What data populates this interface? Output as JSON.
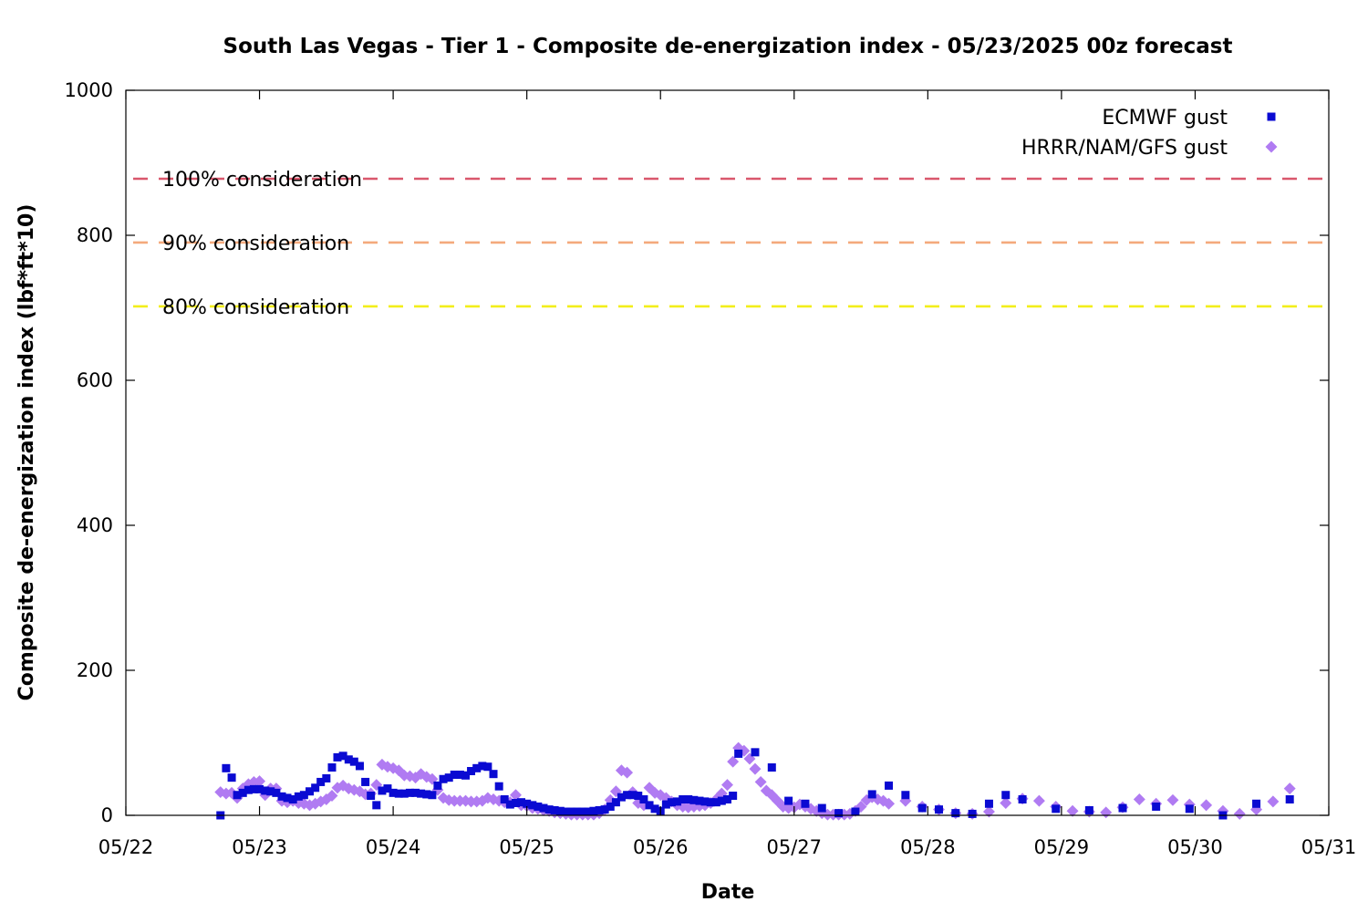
{
  "chart_data": {
    "type": "scatter",
    "title": "South Las Vegas - Tier 1 - Composite de-energization index - 05/23/2025 00z forecast",
    "xlabel": "Date",
    "ylabel": "Composite de-energization index (lbf*ft*10)",
    "x_unit": "days",
    "xlim": [
      0,
      9
    ],
    "ylim": [
      0,
      1000
    ],
    "x_ticks": [
      {
        "value": 0,
        "label": "05/22"
      },
      {
        "value": 1,
        "label": "05/23"
      },
      {
        "value": 2,
        "label": "05/24"
      },
      {
        "value": 3,
        "label": "05/25"
      },
      {
        "value": 4,
        "label": "05/26"
      },
      {
        "value": 5,
        "label": "05/27"
      },
      {
        "value": 6,
        "label": "05/28"
      },
      {
        "value": 7,
        "label": "05/29"
      },
      {
        "value": 8,
        "label": "05/30"
      },
      {
        "value": 9,
        "label": "05/31"
      }
    ],
    "y_ticks": [
      {
        "value": 0,
        "label": "0"
      },
      {
        "value": 200,
        "label": "200"
      },
      {
        "value": 400,
        "label": "400"
      },
      {
        "value": 600,
        "label": "600"
      },
      {
        "value": 800,
        "label": "800"
      },
      {
        "value": 1000,
        "label": "1000"
      }
    ],
    "legend_position": "top-right",
    "grid": false,
    "thresholds": [
      {
        "label": "100% consideration",
        "value": 878,
        "color": "#d9576c"
      },
      {
        "label": "90% consideration",
        "value": 790,
        "color": "#f4a97c"
      },
      {
        "label": "80% consideration",
        "value": 702,
        "color": "#f2ee1a"
      }
    ],
    "series": [
      {
        "name": "ECMWF gust",
        "marker": "square",
        "color": "#0a0ad2",
        "points": [
          [
            0.708,
            0
          ],
          [
            0.75,
            65
          ],
          [
            0.792,
            52
          ],
          [
            0.833,
            28
          ],
          [
            0.875,
            31
          ],
          [
            0.917,
            35
          ],
          [
            0.958,
            36
          ],
          [
            1.0,
            36
          ],
          [
            1.042,
            34
          ],
          [
            1.083,
            33
          ],
          [
            1.125,
            31
          ],
          [
            1.167,
            26
          ],
          [
            1.208,
            24
          ],
          [
            1.25,
            22
          ],
          [
            1.292,
            26
          ],
          [
            1.333,
            28
          ],
          [
            1.375,
            33
          ],
          [
            1.417,
            38
          ],
          [
            1.458,
            46
          ],
          [
            1.5,
            51
          ],
          [
            1.542,
            66
          ],
          [
            1.583,
            80
          ],
          [
            1.625,
            82
          ],
          [
            1.667,
            77
          ],
          [
            1.708,
            74
          ],
          [
            1.75,
            68
          ],
          [
            1.792,
            46
          ],
          [
            1.833,
            27
          ],
          [
            1.875,
            14
          ],
          [
            1.917,
            34
          ],
          [
            1.958,
            37
          ],
          [
            2.0,
            31
          ],
          [
            2.042,
            30
          ],
          [
            2.083,
            30
          ],
          [
            2.125,
            31
          ],
          [
            2.167,
            31
          ],
          [
            2.208,
            30
          ],
          [
            2.25,
            29
          ],
          [
            2.292,
            28
          ],
          [
            2.333,
            41
          ],
          [
            2.375,
            50
          ],
          [
            2.417,
            52
          ],
          [
            2.458,
            56
          ],
          [
            2.5,
            56
          ],
          [
            2.542,
            55
          ],
          [
            2.583,
            61
          ],
          [
            2.625,
            65
          ],
          [
            2.667,
            68
          ],
          [
            2.708,
            67
          ],
          [
            2.75,
            57
          ],
          [
            2.792,
            40
          ],
          [
            2.833,
            22
          ],
          [
            2.875,
            15
          ],
          [
            2.917,
            17
          ],
          [
            2.958,
            18
          ],
          [
            3.0,
            16
          ],
          [
            3.042,
            14
          ],
          [
            3.083,
            12
          ],
          [
            3.125,
            10
          ],
          [
            3.167,
            8
          ],
          [
            3.208,
            7
          ],
          [
            3.25,
            6
          ],
          [
            3.292,
            5
          ],
          [
            3.333,
            5
          ],
          [
            3.375,
            5
          ],
          [
            3.417,
            5
          ],
          [
            3.458,
            5
          ],
          [
            3.5,
            6
          ],
          [
            3.542,
            7
          ],
          [
            3.583,
            8
          ],
          [
            3.625,
            12
          ],
          [
            3.667,
            18
          ],
          [
            3.708,
            25
          ],
          [
            3.75,
            28
          ],
          [
            3.792,
            28
          ],
          [
            3.833,
            27
          ],
          [
            3.875,
            22
          ],
          [
            3.917,
            14
          ],
          [
            3.958,
            9
          ],
          [
            4.0,
            6
          ],
          [
            4.042,
            15
          ],
          [
            4.083,
            18
          ],
          [
            4.125,
            19
          ],
          [
            4.167,
            22
          ],
          [
            4.208,
            22
          ],
          [
            4.25,
            21
          ],
          [
            4.292,
            20
          ],
          [
            4.333,
            19
          ],
          [
            4.375,
            18
          ],
          [
            4.417,
            18
          ],
          [
            4.458,
            20
          ],
          [
            4.5,
            22
          ],
          [
            4.542,
            27
          ],
          [
            4.583,
            85
          ],
          [
            4.708,
            87
          ],
          [
            4.833,
            66
          ],
          [
            4.958,
            20
          ],
          [
            5.083,
            16
          ],
          [
            5.208,
            10
          ],
          [
            5.333,
            3
          ],
          [
            5.458,
            5
          ],
          [
            5.583,
            29
          ],
          [
            5.708,
            41
          ],
          [
            5.833,
            28
          ],
          [
            5.958,
            10
          ],
          [
            6.083,
            8
          ],
          [
            6.208,
            3
          ],
          [
            6.333,
            2
          ],
          [
            6.458,
            16
          ],
          [
            6.583,
            28
          ],
          [
            6.708,
            22
          ],
          [
            6.958,
            9
          ],
          [
            7.208,
            7
          ],
          [
            7.458,
            10
          ],
          [
            7.708,
            12
          ],
          [
            7.958,
            9
          ],
          [
            8.208,
            0
          ],
          [
            8.458,
            16
          ],
          [
            8.708,
            22
          ]
        ]
      },
      {
        "name": "HRRR/NAM/GFS gust",
        "marker": "diamond",
        "color": "#b07bf2",
        "points": [
          [
            0.708,
            32
          ],
          [
            0.75,
            30
          ],
          [
            0.792,
            31
          ],
          [
            0.833,
            24
          ],
          [
            0.875,
            37
          ],
          [
            0.917,
            43
          ],
          [
            0.958,
            46
          ],
          [
            1.0,
            47
          ],
          [
            1.042,
            28
          ],
          [
            1.083,
            37
          ],
          [
            1.125,
            37
          ],
          [
            1.167,
            20
          ],
          [
            1.208,
            18
          ],
          [
            1.25,
            20
          ],
          [
            1.292,
            17
          ],
          [
            1.333,
            16
          ],
          [
            1.375,
            14
          ],
          [
            1.417,
            16
          ],
          [
            1.458,
            19
          ],
          [
            1.5,
            22
          ],
          [
            1.542,
            27
          ],
          [
            1.583,
            38
          ],
          [
            1.625,
            41
          ],
          [
            1.667,
            37
          ],
          [
            1.708,
            35
          ],
          [
            1.75,
            33
          ],
          [
            1.792,
            29
          ],
          [
            1.833,
            30
          ],
          [
            1.875,
            42
          ],
          [
            1.917,
            70
          ],
          [
            1.958,
            67
          ],
          [
            2.0,
            65
          ],
          [
            2.042,
            62
          ],
          [
            2.083,
            55
          ],
          [
            2.125,
            54
          ],
          [
            2.167,
            52
          ],
          [
            2.208,
            57
          ],
          [
            2.25,
            53
          ],
          [
            2.292,
            50
          ],
          [
            2.333,
            35
          ],
          [
            2.375,
            24
          ],
          [
            2.417,
            21
          ],
          [
            2.458,
            20
          ],
          [
            2.5,
            20
          ],
          [
            2.542,
            20
          ],
          [
            2.583,
            19
          ],
          [
            2.625,
            19
          ],
          [
            2.667,
            20
          ],
          [
            2.708,
            24
          ],
          [
            2.75,
            22
          ],
          [
            2.792,
            20
          ],
          [
            2.833,
            18
          ],
          [
            2.875,
            18
          ],
          [
            2.917,
            28
          ],
          [
            2.958,
            14
          ],
          [
            3.0,
            13
          ],
          [
            3.042,
            10
          ],
          [
            3.083,
            9
          ],
          [
            3.125,
            7
          ],
          [
            3.167,
            6
          ],
          [
            3.208,
            4
          ],
          [
            3.25,
            3
          ],
          [
            3.292,
            2
          ],
          [
            3.333,
            1
          ],
          [
            3.375,
            1
          ],
          [
            3.417,
            1
          ],
          [
            3.458,
            1
          ],
          [
            3.5,
            1
          ],
          [
            3.542,
            3
          ],
          [
            3.583,
            8
          ],
          [
            3.625,
            21
          ],
          [
            3.667,
            33
          ],
          [
            3.708,
            62
          ],
          [
            3.75,
            59
          ],
          [
            3.792,
            32
          ],
          [
            3.833,
            17
          ],
          [
            3.875,
            14
          ],
          [
            3.917,
            38
          ],
          [
            3.958,
            31
          ],
          [
            4.0,
            28
          ],
          [
            4.042,
            24
          ],
          [
            4.083,
            19
          ],
          [
            4.125,
            14
          ],
          [
            4.167,
            12
          ],
          [
            4.208,
            11
          ],
          [
            4.25,
            12
          ],
          [
            4.292,
            13
          ],
          [
            4.333,
            14
          ],
          [
            4.375,
            17
          ],
          [
            4.417,
            22
          ],
          [
            4.458,
            30
          ],
          [
            4.5,
            42
          ],
          [
            4.542,
            74
          ],
          [
            4.583,
            93
          ],
          [
            4.625,
            89
          ],
          [
            4.667,
            78
          ],
          [
            4.708,
            64
          ],
          [
            4.75,
            46
          ],
          [
            4.792,
            34
          ],
          [
            4.833,
            28
          ],
          [
            4.875,
            20
          ],
          [
            4.917,
            12
          ],
          [
            4.958,
            10
          ],
          [
            5.0,
            11
          ],
          [
            5.042,
            15
          ],
          [
            5.083,
            12
          ],
          [
            5.125,
            9
          ],
          [
            5.167,
            6
          ],
          [
            5.208,
            3
          ],
          [
            5.25,
            1
          ],
          [
            5.292,
            1
          ],
          [
            5.333,
            1
          ],
          [
            5.375,
            1
          ],
          [
            5.417,
            2
          ],
          [
            5.458,
            6
          ],
          [
            5.5,
            12
          ],
          [
            5.542,
            21
          ],
          [
            5.583,
            25
          ],
          [
            5.625,
            22
          ],
          [
            5.667,
            20
          ],
          [
            5.708,
            16
          ],
          [
            5.833,
            20
          ],
          [
            5.958,
            12
          ],
          [
            6.083,
            8
          ],
          [
            6.208,
            3
          ],
          [
            6.333,
            2
          ],
          [
            6.458,
            5
          ],
          [
            6.583,
            17
          ],
          [
            6.708,
            23
          ],
          [
            6.833,
            20
          ],
          [
            6.958,
            12
          ],
          [
            7.083,
            6
          ],
          [
            7.208,
            5
          ],
          [
            7.333,
            4
          ],
          [
            7.458,
            11
          ],
          [
            7.583,
            22
          ],
          [
            7.708,
            16
          ],
          [
            7.833,
            21
          ],
          [
            7.958,
            15
          ],
          [
            8.083,
            14
          ],
          [
            8.208,
            6
          ],
          [
            8.333,
            2
          ],
          [
            8.458,
            8
          ],
          [
            8.583,
            19
          ],
          [
            8.708,
            37
          ]
        ]
      }
    ]
  }
}
